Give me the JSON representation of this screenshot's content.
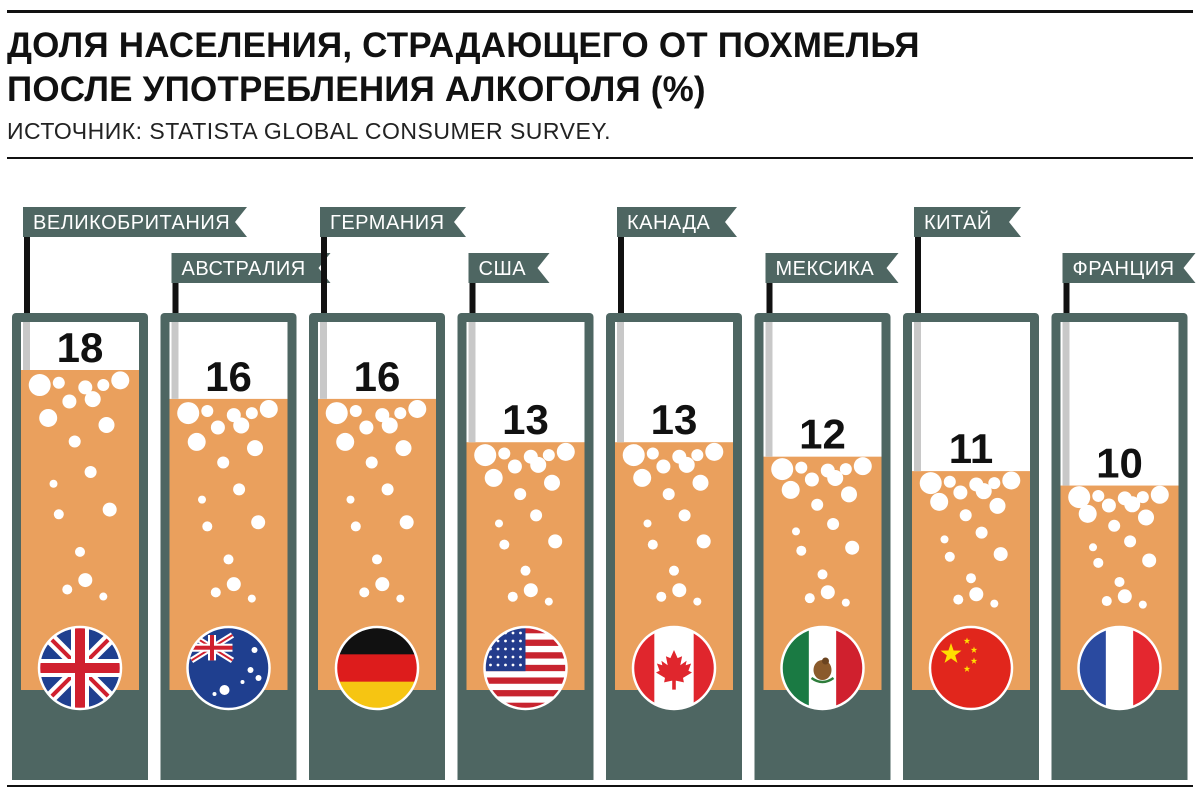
{
  "header": {
    "title_line1": "ДОЛЯ НАСЕЛЕНИЯ, СТРАДАЮЩЕГО ОТ ПОХМЕЛЬЯ",
    "title_line2": "ПОСЛЕ УПОТРЕБЛЕНИЯ АЛКОГОЛЯ (%)",
    "source": "ИСТОЧНИК: STATISTA GLOBAL CONSUMER SURVEY."
  },
  "colors": {
    "tube": "#4e6662",
    "liquid": "#eaa05d",
    "bubble": "#ffffff",
    "highlight": "#c8c8c8",
    "label_bg": "#4e6662",
    "text": "#111111"
  },
  "chart_data": {
    "type": "bar",
    "title": "ДОЛЯ НАСЕЛЕНИЯ, СТРАДАЮЩЕГО ОТ ПОХМЕЛЬЯ ПОСЛЕ УПОТРЕБЛЕНИЯ АЛКОГОЛЯ (%)",
    "categories": [
      "ВЕЛИКОБРИТАНИЯ",
      "АВСТРАЛИЯ",
      "ГЕРМАНИЯ",
      "США",
      "КАНАДА",
      "МЕКСИКА",
      "КИТАЙ",
      "ФРАНЦИЯ"
    ],
    "values": [
      18,
      16,
      16,
      13,
      13,
      12,
      11,
      10
    ],
    "value_labels": [
      "18",
      "16",
      "16",
      "13",
      "13",
      "12",
      "11",
      "10"
    ],
    "flags": [
      "uk-flag-icon",
      "australia-flag-icon",
      "germany-flag-icon",
      "usa-flag-icon",
      "canada-flag-icon",
      "mexico-flag-icon",
      "china-flag-icon",
      "france-flag-icon"
    ],
    "xlabel": "",
    "ylabel": "",
    "ylim": [
      0,
      20
    ],
    "grid": false,
    "legend": "none"
  }
}
